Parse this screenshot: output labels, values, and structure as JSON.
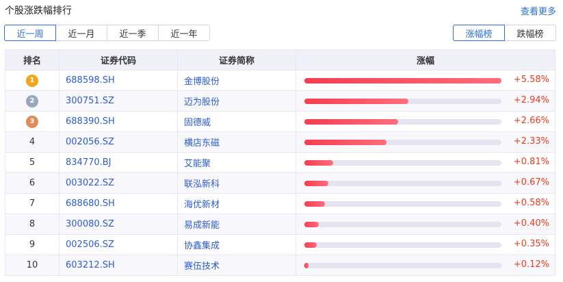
{
  "header": {
    "title": "个股涨跌幅排行",
    "more": "查看更多"
  },
  "periods": [
    "近一周",
    "近一月",
    "近一季",
    "近一年"
  ],
  "active_period": 0,
  "directions": [
    "涨幅榜",
    "跌幅榜"
  ],
  "active_direction": 0,
  "columns": [
    "排名",
    "证券代码",
    "证券简称",
    "涨幅"
  ],
  "colors": {
    "accent": "#2b6fd6",
    "up": "#f03b1b",
    "gold": "#f3a51d",
    "silver": "#98a7bb",
    "bronze": "#e38a58"
  },
  "rows": [
    {
      "rank": "1",
      "code": "688598.SH",
      "name": "金博股份",
      "change": "+5.58%",
      "value": 5.58
    },
    {
      "rank": "2",
      "code": "300751.SZ",
      "name": "迈为股份",
      "change": "+2.94%",
      "value": 2.94
    },
    {
      "rank": "3",
      "code": "688390.SH",
      "name": "固德威",
      "change": "+2.66%",
      "value": 2.66
    },
    {
      "rank": "4",
      "code": "002056.SZ",
      "name": "横店东磁",
      "change": "+2.33%",
      "value": 2.33
    },
    {
      "rank": "5",
      "code": "834770.BJ",
      "name": "艾能聚",
      "change": "+0.81%",
      "value": 0.81
    },
    {
      "rank": "6",
      "code": "003022.SZ",
      "name": "联泓新科",
      "change": "+0.67%",
      "value": 0.67
    },
    {
      "rank": "7",
      "code": "688680.SH",
      "name": "海优新材",
      "change": "+0.58%",
      "value": 0.58
    },
    {
      "rank": "8",
      "code": "300080.SZ",
      "name": "易成新能",
      "change": "+0.40%",
      "value": 0.4
    },
    {
      "rank": "9",
      "code": "002506.SZ",
      "name": "协鑫集成",
      "change": "+0.35%",
      "value": 0.35
    },
    {
      "rank": "10",
      "code": "603212.SH",
      "name": "赛伍技术",
      "change": "+0.12%",
      "value": 0.12
    }
  ]
}
